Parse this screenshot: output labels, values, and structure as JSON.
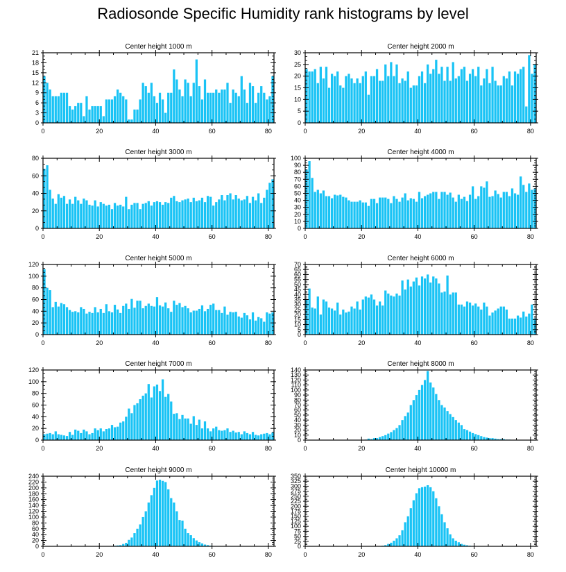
{
  "title": "Radiosonde Specific Humidity rank histograms by level",
  "colors": {
    "bar": "#19c3f5",
    "axis": "#000000",
    "background": "#ffffff"
  },
  "chart_data": [
    {
      "type": "bar",
      "title": "Center height 1000 m",
      "xlabel": "",
      "ylabel": "",
      "xlim": [
        0,
        82
      ],
      "ylim": [
        0,
        21
      ],
      "xticks": [
        0,
        20,
        40,
        60,
        80
      ],
      "yticks": [
        0,
        3,
        6,
        9,
        12,
        15,
        18,
        21
      ],
      "values": [
        14,
        12,
        10,
        8,
        8,
        8,
        9,
        9,
        9,
        5,
        4,
        5,
        6,
        6,
        2,
        8,
        4,
        5,
        5,
        5,
        5,
        2,
        7,
        7,
        7,
        8,
        10,
        9,
        8,
        7,
        1,
        1,
        4,
        4,
        7,
        12,
        11,
        9,
        12,
        8,
        6,
        9,
        7,
        3,
        9,
        9,
        16,
        13,
        10,
        8,
        13,
        12,
        8,
        12,
        19,
        11,
        7,
        13,
        9,
        9,
        9,
        10,
        9,
        10,
        10,
        12,
        6,
        10,
        9,
        8,
        14,
        10,
        6,
        12,
        11,
        6,
        9,
        11,
        9,
        7,
        8,
        14
      ]
    },
    {
      "type": "bar",
      "title": "Center height 2000 m",
      "xlabel": "",
      "ylabel": "",
      "xlim": [
        0,
        82
      ],
      "ylim": [
        0,
        30
      ],
      "xticks": [
        0,
        20,
        40,
        60,
        80
      ],
      "yticks": [
        0,
        5,
        10,
        15,
        20,
        25,
        30
      ],
      "values": [
        23,
        22,
        22,
        23,
        17,
        24,
        19,
        24,
        15,
        21,
        20,
        22,
        16,
        15,
        20,
        21,
        19,
        17,
        19,
        17,
        20,
        22,
        12,
        20,
        20,
        23,
        18,
        18,
        25,
        20,
        26,
        20,
        25,
        17,
        19,
        18,
        22,
        15,
        16,
        16,
        20,
        22,
        17,
        25,
        21,
        23,
        27,
        21,
        24,
        18,
        24,
        18,
        26,
        19,
        20,
        23,
        24,
        18,
        21,
        23,
        20,
        24,
        16,
        19,
        23,
        17,
        24,
        18,
        16,
        16,
        20,
        19,
        22,
        16,
        22,
        21,
        23,
        24,
        7,
        29,
        21,
        25
      ]
    },
    {
      "type": "bar",
      "title": "Center height 3000 m",
      "xlabel": "",
      "ylabel": "",
      "xlim": [
        0,
        82
      ],
      "ylim": [
        0,
        80
      ],
      "xticks": [
        0,
        20,
        40,
        60,
        80
      ],
      "yticks": [
        0,
        20,
        40,
        60,
        80
      ],
      "values": [
        68,
        72,
        44,
        34,
        28,
        39,
        35,
        37,
        28,
        33,
        28,
        36,
        32,
        28,
        34,
        32,
        27,
        26,
        32,
        25,
        30,
        28,
        26,
        27,
        22,
        29,
        26,
        27,
        25,
        36,
        22,
        27,
        29,
        29,
        22,
        28,
        29,
        31,
        26,
        30,
        31,
        30,
        27,
        30,
        29,
        35,
        37,
        31,
        30,
        32,
        33,
        34,
        30,
        35,
        31,
        32,
        35,
        30,
        37,
        36,
        26,
        30,
        33,
        38,
        32,
        38,
        40,
        33,
        38,
        34,
        32,
        33,
        37,
        29,
        36,
        32,
        40,
        29,
        35,
        44,
        52,
        56
      ]
    },
    {
      "type": "bar",
      "title": "Center height 4000 m",
      "xlabel": "",
      "ylabel": "",
      "xlim": [
        0,
        82
      ],
      "ylim": [
        0,
        100
      ],
      "xticks": [
        0,
        20,
        40,
        60,
        80
      ],
      "yticks": [
        0,
        10,
        20,
        30,
        40,
        50,
        60,
        70,
        80,
        90,
        100
      ],
      "values": [
        84,
        96,
        72,
        52,
        55,
        50,
        54,
        46,
        46,
        43,
        48,
        47,
        48,
        45,
        44,
        40,
        38,
        38,
        38,
        40,
        37,
        37,
        32,
        42,
        42,
        36,
        44,
        44,
        44,
        42,
        36,
        46,
        42,
        38,
        44,
        50,
        40,
        43,
        42,
        38,
        52,
        43,
        46,
        48,
        50,
        52,
        52,
        42,
        52,
        52,
        48,
        51,
        44,
        38,
        48,
        42,
        45,
        39,
        48,
        60,
        42,
        46,
        60,
        58,
        67,
        45,
        46,
        54,
        49,
        44,
        52,
        52,
        46,
        57,
        50,
        48,
        74,
        62,
        52,
        64,
        55,
        57
      ]
    },
    {
      "type": "bar",
      "title": "Center height 5000 m",
      "xlabel": "",
      "ylabel": "",
      "xlim": [
        0,
        82
      ],
      "ylim": [
        0,
        120
      ],
      "xticks": [
        0,
        20,
        40,
        60,
        80
      ],
      "yticks": [
        0,
        20,
        40,
        60,
        80,
        100,
        120
      ],
      "values": [
        112,
        80,
        76,
        47,
        56,
        48,
        54,
        52,
        47,
        42,
        39,
        40,
        38,
        47,
        44,
        36,
        39,
        37,
        47,
        38,
        44,
        37,
        52,
        40,
        38,
        51,
        43,
        37,
        49,
        53,
        44,
        61,
        46,
        58,
        58,
        45,
        49,
        53,
        49,
        48,
        64,
        50,
        48,
        55,
        45,
        39,
        58,
        51,
        54,
        47,
        49,
        45,
        38,
        41,
        41,
        44,
        50,
        40,
        44,
        51,
        53,
        42,
        42,
        37,
        48,
        34,
        39,
        38,
        39,
        31,
        29,
        37,
        33,
        26,
        38,
        24,
        30,
        28,
        22,
        38,
        36,
        38
      ]
    },
    {
      "type": "bar",
      "title": "Center height 6000 m",
      "xlabel": "",
      "ylabel": "",
      "xlim": [
        0,
        82
      ],
      "ylim": [
        0,
        70
      ],
      "xticks": [
        0,
        20,
        40,
        60,
        80
      ],
      "yticks": [
        0,
        5,
        10,
        15,
        20,
        25,
        30,
        35,
        40,
        45,
        50,
        55,
        60,
        65,
        70
      ],
      "values": [
        35,
        46,
        27,
        26,
        38,
        20,
        35,
        33,
        27,
        26,
        24,
        32,
        20,
        25,
        22,
        23,
        28,
        26,
        33,
        25,
        35,
        38,
        37,
        40,
        35,
        29,
        33,
        29,
        44,
        41,
        39,
        38,
        41,
        39,
        54,
        45,
        55,
        48,
        53,
        57,
        49,
        58,
        56,
        60,
        52,
        58,
        56,
        51,
        42,
        43,
        59,
        40,
        42,
        42,
        30,
        30,
        28,
        33,
        32,
        29,
        31,
        28,
        25,
        32,
        28,
        19,
        22,
        24,
        26,
        28,
        28,
        25,
        16,
        16,
        16,
        19,
        17,
        23,
        18,
        21,
        30,
        16
      ]
    },
    {
      "type": "bar",
      "title": "Center height 7000 m",
      "xlabel": "",
      "ylabel": "",
      "xlim": [
        0,
        82
      ],
      "ylim": [
        0,
        120
      ],
      "xticks": [
        0,
        20,
        40,
        60,
        80
      ],
      "yticks": [
        0,
        20,
        40,
        60,
        80,
        100,
        120
      ],
      "values": [
        10,
        11,
        12,
        10,
        15,
        10,
        9,
        8,
        7,
        14,
        9,
        18,
        16,
        12,
        18,
        15,
        10,
        12,
        20,
        17,
        20,
        15,
        19,
        20,
        26,
        22,
        23,
        30,
        32,
        40,
        54,
        46,
        60,
        63,
        70,
        76,
        80,
        96,
        73,
        92,
        95,
        84,
        104,
        74,
        79,
        66,
        45,
        46,
        36,
        43,
        37,
        37,
        28,
        41,
        26,
        35,
        20,
        32,
        20,
        15,
        20,
        23,
        17,
        16,
        17,
        20,
        14,
        16,
        13,
        14,
        10,
        15,
        12,
        10,
        14,
        9,
        8,
        10,
        11,
        12,
        10,
        13
      ]
    },
    {
      "type": "bar",
      "title": "Center height 8000 m",
      "xlabel": "",
      "ylabel": "",
      "xlim": [
        0,
        82
      ],
      "ylim": [
        0,
        140
      ],
      "xticks": [
        0,
        20,
        40,
        60,
        80
      ],
      "yticks": [
        0,
        10,
        20,
        30,
        40,
        50,
        60,
        70,
        80,
        90,
        100,
        110,
        120,
        130,
        140
      ],
      "values": [
        0,
        0,
        0,
        0,
        0,
        0,
        0,
        0,
        0,
        0,
        0,
        0,
        0,
        0,
        0,
        0,
        0,
        0,
        0,
        0,
        0,
        1,
        3,
        2,
        4,
        4,
        6,
        8,
        10,
        13,
        16,
        20,
        24,
        30,
        40,
        48,
        55,
        70,
        80,
        90,
        100,
        110,
        120,
        138,
        115,
        105,
        92,
        80,
        70,
        65,
        58,
        52,
        46,
        40,
        35,
        30,
        22,
        20,
        17,
        14,
        12,
        10,
        8,
        6,
        5,
        4,
        4,
        3,
        2,
        2,
        2,
        1,
        1,
        0,
        0,
        0,
        0,
        0,
        0,
        0,
        0,
        0
      ]
    },
    {
      "type": "bar",
      "title": "Center height 9000 m",
      "xlabel": "",
      "ylabel": "",
      "xlim": [
        0,
        82
      ],
      "ylim": [
        0,
        240
      ],
      "xticks": [
        0,
        20,
        40,
        60,
        80
      ],
      "yticks": [
        0,
        20,
        40,
        60,
        80,
        100,
        120,
        140,
        160,
        180,
        200,
        220,
        240
      ],
      "values": [
        0,
        0,
        0,
        0,
        0,
        0,
        0,
        0,
        0,
        0,
        0,
        0,
        0,
        0,
        0,
        0,
        0,
        0,
        0,
        0,
        0,
        0,
        0,
        0,
        1,
        2,
        3,
        4,
        8,
        12,
        22,
        30,
        45,
        60,
        75,
        100,
        120,
        150,
        175,
        200,
        225,
        228,
        224,
        220,
        195,
        165,
        150,
        120,
        90,
        88,
        60,
        45,
        38,
        28,
        20,
        14,
        10,
        6,
        4,
        2,
        1,
        1,
        1,
        0,
        0,
        0,
        0,
        0,
        0,
        0,
        0,
        0,
        0,
        0,
        0,
        0,
        0,
        0,
        0,
        0,
        0,
        0
      ]
    },
    {
      "type": "bar",
      "title": "Center height 10000 m",
      "xlabel": "",
      "ylabel": "",
      "xlim": [
        0,
        82
      ],
      "ylim": [
        0,
        350
      ],
      "xticks": [
        0,
        20,
        40,
        60,
        80
      ],
      "yticks": [
        0,
        25,
        50,
        75,
        100,
        125,
        150,
        175,
        200,
        225,
        250,
        275,
        300,
        325,
        350
      ],
      "values": [
        0,
        0,
        0,
        0,
        0,
        0,
        0,
        0,
        0,
        0,
        0,
        0,
        0,
        0,
        0,
        0,
        0,
        0,
        0,
        0,
        0,
        0,
        0,
        0,
        0,
        0,
        1,
        3,
        6,
        12,
        18,
        28,
        40,
        55,
        80,
        120,
        150,
        190,
        230,
        265,
        290,
        295,
        298,
        305,
        295,
        275,
        240,
        200,
        160,
        120,
        90,
        60,
        40,
        28,
        20,
        12,
        8,
        5,
        3,
        2,
        1,
        1,
        0,
        0,
        0,
        0,
        0,
        0,
        0,
        0,
        0,
        0,
        0,
        0,
        0,
        0,
        0,
        0,
        0,
        0,
        0,
        0
      ]
    }
  ]
}
